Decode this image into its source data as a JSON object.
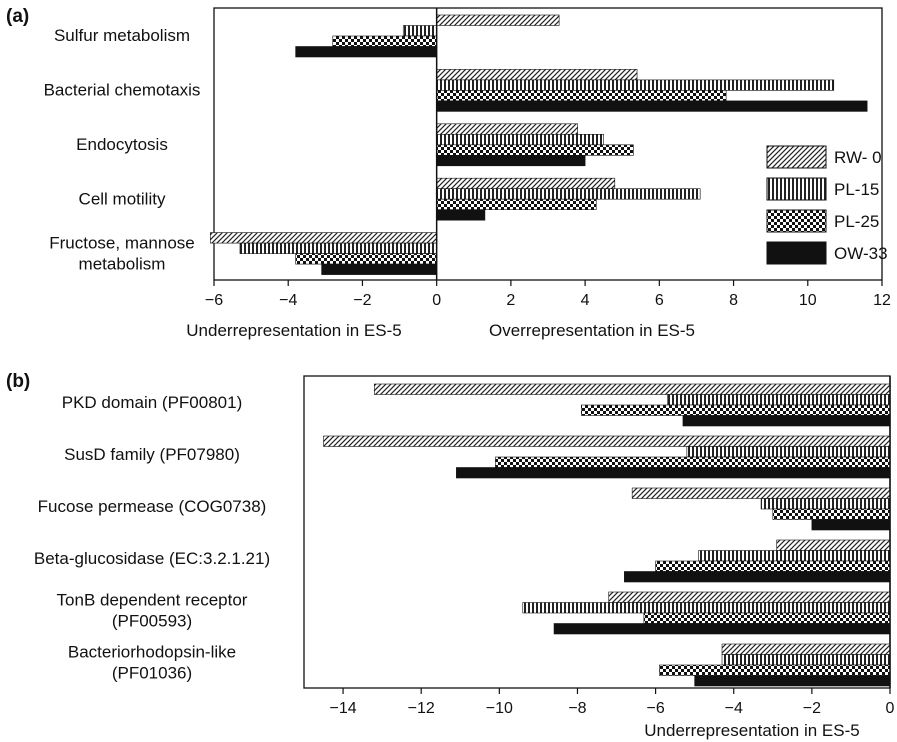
{
  "chart_data": [
    {
      "type": "bar",
      "orientation": "horizontal",
      "panel_label": "(a)",
      "categories": [
        [
          "Sulfur metabolism"
        ],
        [
          "Bacterial chemotaxis"
        ],
        [
          "Endocytosis"
        ],
        [
          "Cell motility"
        ],
        [
          "Fructose, mannose",
          "metabolism"
        ]
      ],
      "series": [
        {
          "name": "RW- 0",
          "pattern": "diagonal",
          "values": [
            3.3,
            5.4,
            3.8,
            4.8,
            -6.1
          ]
        },
        {
          "name": "PL-15",
          "pattern": "vertical",
          "values": [
            -0.9,
            10.7,
            4.5,
            7.1,
            -5.3
          ]
        },
        {
          "name": "PL-25",
          "pattern": "checker",
          "values": [
            -2.8,
            7.8,
            5.3,
            4.3,
            -3.8
          ]
        },
        {
          "name": "OW-33",
          "pattern": "solid",
          "values": [
            -3.8,
            11.6,
            4.0,
            1.3,
            -3.1
          ]
        }
      ],
      "xlim": [
        -6,
        12
      ],
      "xticks": [
        -6,
        -4,
        -2,
        0,
        2,
        4,
        6,
        8,
        10,
        12
      ],
      "tick_labels": [
        "−6",
        "−4",
        "−2",
        "0",
        "2",
        "4",
        "6",
        "8",
        "10",
        "12"
      ],
      "xlabel_left": "Underrepresentation in ES-5",
      "xlabel_right": "Overrepresentation in ES-5",
      "legend": "right"
    },
    {
      "type": "bar",
      "orientation": "horizontal",
      "panel_label": "(b)",
      "categories": [
        [
          "PKD domain (PF00801)"
        ],
        [
          "SusD family (PF07980)"
        ],
        [
          "Fucose permease (COG0738)"
        ],
        [
          "Beta-glucosidase (EC:3.2.1.21)"
        ],
        [
          "TonB dependent receptor",
          "(PF00593)"
        ],
        [
          "Bacteriorhodopsin-like",
          "(PF01036)"
        ]
      ],
      "series": [
        {
          "name": "RW- 0",
          "pattern": "diagonal",
          "values": [
            -13.2,
            -14.5,
            -6.6,
            -2.9,
            -7.2,
            -4.3
          ]
        },
        {
          "name": "PL-15",
          "pattern": "vertical",
          "values": [
            -5.7,
            -5.2,
            -3.3,
            -4.9,
            -9.4,
            -4.3
          ]
        },
        {
          "name": "PL-25",
          "pattern": "checker",
          "values": [
            -7.9,
            -10.1,
            -3.0,
            -6.0,
            -6.3,
            -5.9
          ]
        },
        {
          "name": "OW-33",
          "pattern": "solid",
          "values": [
            -5.3,
            -11.1,
            -2.0,
            -6.8,
            -8.6,
            -5.0
          ]
        }
      ],
      "xlim": [
        -15,
        0
      ],
      "xticks": [
        -14,
        -12,
        -10,
        -8,
        -6,
        -4,
        -2,
        0
      ],
      "tick_labels": [
        "−14",
        "−12",
        "−10",
        "−8",
        "−6",
        "−4",
        "−2",
        "0"
      ],
      "xlabel": "Underrepresentation in ES-5"
    }
  ]
}
